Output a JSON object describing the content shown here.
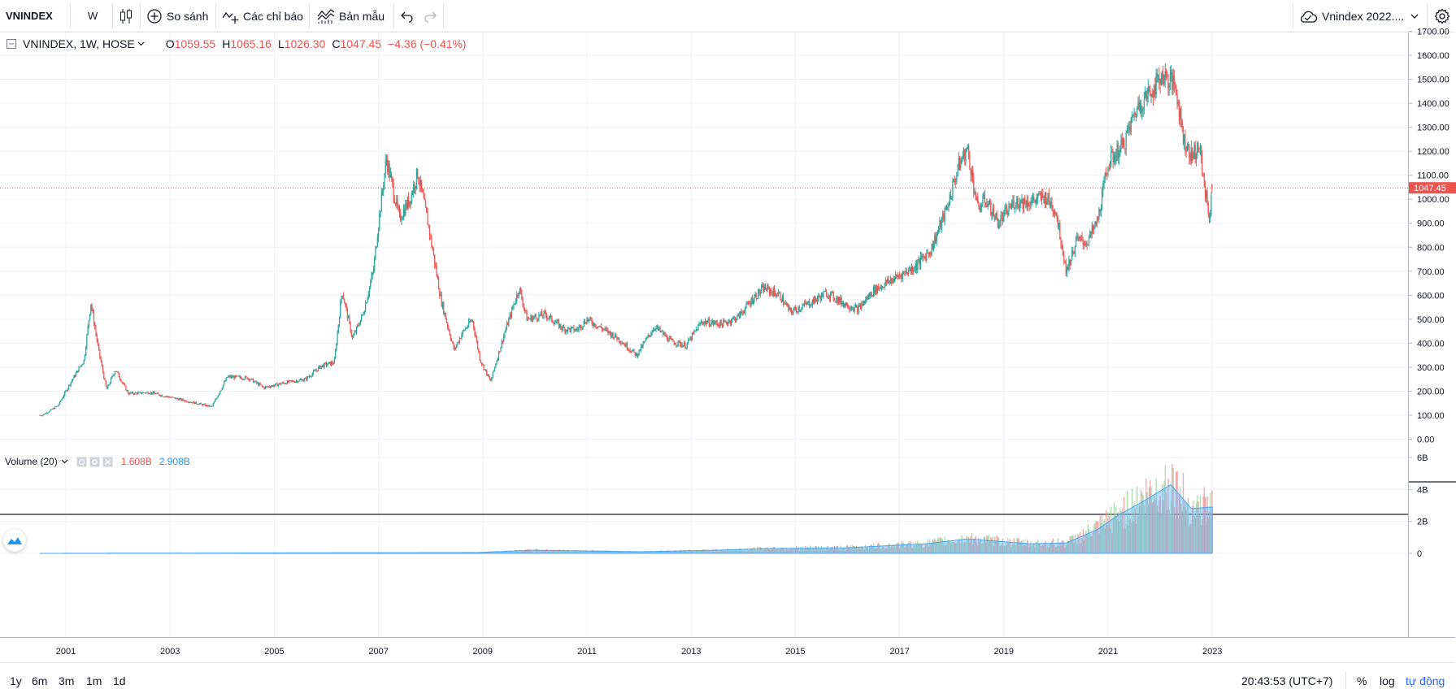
{
  "toolbar": {
    "symbol": "VNINDEX",
    "interval": "W",
    "compare_label": "So sánh",
    "indicators_label": "Các chỉ báo",
    "templates_label": "Bản mẫu",
    "layout_name": "Vnindex 2022...."
  },
  "legend": {
    "title": "VNINDEX, 1W, HOSE",
    "o_label": "O",
    "o_value": "1059.55",
    "h_label": "H",
    "h_value": "1065.16",
    "l_label": "L",
    "l_value": "1026.30",
    "c_label": "C",
    "c_value": "1047.45",
    "change": "−4.36 (−0.41%)"
  },
  "volume_legend": {
    "title": "Volume (20)",
    "value1": "1.608B",
    "value2": "2.908B"
  },
  "price_axis": {
    "labels": [
      "1700.00",
      "1600.00",
      "1500.00",
      "1400.00",
      "1300.00",
      "1200.00",
      "1100.00",
      "1000.00",
      "900.00",
      "800.00",
      "700.00",
      "600.00",
      "500.00",
      "400.00",
      "300.00",
      "200.00",
      "100.00",
      "0.00"
    ],
    "current_price_label": "1047.45"
  },
  "volume_axis": {
    "labels": [
      "6B",
      "4B",
      "2B",
      "0"
    ]
  },
  "time_axis": {
    "labels": [
      "2001",
      "2003",
      "2005",
      "2007",
      "2009",
      "2011",
      "2013",
      "2015",
      "2017",
      "2019",
      "2021",
      "2023"
    ]
  },
  "bottom_bar": {
    "ranges": [
      "1y",
      "6m",
      "3m",
      "1m",
      "1d"
    ],
    "clock": "20:43:53 (UTC+7)",
    "percent_label": "%",
    "log_label": "log",
    "auto_label": "tự động"
  },
  "colors": {
    "up": "#26a69a",
    "down": "#ef5350",
    "volume_ma": "#2196f3",
    "grid": "#f0f3fa",
    "accent": "#2962ff"
  },
  "chart_data": {
    "type": "candlestick",
    "series_name": "VNINDEX",
    "ylim": [
      0,
      1700
    ],
    "x_range": [
      2000.5,
      2023.0
    ],
    "anchors": [
      [
        2000.55,
        100
      ],
      [
        2000.85,
        140
      ],
      [
        2001.1,
        240
      ],
      [
        2001.35,
        330
      ],
      [
        2001.48,
        570
      ],
      [
        2001.62,
        380
      ],
      [
        2001.78,
        205
      ],
      [
        2001.95,
        290
      ],
      [
        2002.2,
        190
      ],
      [
        2002.6,
        195
      ],
      [
        2003.0,
        175
      ],
      [
        2003.5,
        150
      ],
      [
        2003.8,
        135
      ],
      [
        2004.1,
        260
      ],
      [
        2004.5,
        255
      ],
      [
        2004.8,
        215
      ],
      [
        2005.2,
        235
      ],
      [
        2005.6,
        250
      ],
      [
        2005.9,
        305
      ],
      [
        2006.15,
        320
      ],
      [
        2006.3,
        620
      ],
      [
        2006.5,
        420
      ],
      [
        2006.7,
        520
      ],
      [
        2006.9,
        700
      ],
      [
        2007.0,
        900
      ],
      [
        2007.15,
        1170
      ],
      [
        2007.4,
        920
      ],
      [
        2007.6,
        1000
      ],
      [
        2007.75,
        1110
      ],
      [
        2007.95,
        900
      ],
      [
        2008.2,
        580
      ],
      [
        2008.45,
        370
      ],
      [
        2008.6,
        440
      ],
      [
        2008.8,
        500
      ],
      [
        2008.95,
        330
      ],
      [
        2009.15,
        240
      ],
      [
        2009.4,
        430
      ],
      [
        2009.7,
        630
      ],
      [
        2009.85,
        500
      ],
      [
        2010.2,
        520
      ],
      [
        2010.55,
        460
      ],
      [
        2010.8,
        455
      ],
      [
        2011.0,
        500
      ],
      [
        2011.3,
        460
      ],
      [
        2011.6,
        420
      ],
      [
        2011.95,
        350
      ],
      [
        2012.3,
        470
      ],
      [
        2012.6,
        410
      ],
      [
        2012.9,
        390
      ],
      [
        2013.2,
        490
      ],
      [
        2013.6,
        480
      ],
      [
        2013.9,
        510
      ],
      [
        2014.2,
        590
      ],
      [
        2014.4,
        630
      ],
      [
        2014.7,
        600
      ],
      [
        2014.9,
        530
      ],
      [
        2015.3,
        570
      ],
      [
        2015.6,
        610
      ],
      [
        2015.9,
        570
      ],
      [
        2016.2,
        540
      ],
      [
        2016.5,
        620
      ],
      [
        2016.9,
        670
      ],
      [
        2017.3,
        720
      ],
      [
        2017.6,
        790
      ],
      [
        2017.9,
        960
      ],
      [
        2018.15,
        1150
      ],
      [
        2018.3,
        1210
      ],
      [
        2018.5,
        960
      ],
      [
        2018.65,
        1000
      ],
      [
        2018.9,
        900
      ],
      [
        2019.2,
        990
      ],
      [
        2019.5,
        990
      ],
      [
        2019.8,
        1010
      ],
      [
        2020.0,
        950
      ],
      [
        2020.2,
        700
      ],
      [
        2020.4,
        830
      ],
      [
        2020.6,
        820
      ],
      [
        2020.8,
        910
      ],
      [
        2021.0,
        1150
      ],
      [
        2021.3,
        1230
      ],
      [
        2021.55,
        1380
      ],
      [
        2021.85,
        1460
      ],
      [
        2022.05,
        1520
      ],
      [
        2022.3,
        1470
      ],
      [
        2022.45,
        1250
      ],
      [
        2022.6,
        1180
      ],
      [
        2022.75,
        1220
      ],
      [
        2022.85,
        1050
      ],
      [
        2022.95,
        920
      ],
      [
        2023.0,
        1047
      ]
    ],
    "volume_profile": [
      [
        2000.5,
        0.0
      ],
      [
        2008.9,
        0.05
      ],
      [
        2009.6,
        0.15
      ],
      [
        2010.0,
        0.2
      ],
      [
        2012.0,
        0.1
      ],
      [
        2013.5,
        0.2
      ],
      [
        2014.5,
        0.3
      ],
      [
        2016.0,
        0.35
      ],
      [
        2017.5,
        0.6
      ],
      [
        2018.3,
        0.9
      ],
      [
        2019.5,
        0.6
      ],
      [
        2020.2,
        0.65
      ],
      [
        2020.8,
        1.5
      ],
      [
        2021.2,
        2.4
      ],
      [
        2021.7,
        3.3
      ],
      [
        2022.2,
        4.3
      ],
      [
        2022.6,
        2.8
      ],
      [
        2023.0,
        2.9
      ]
    ],
    "volume_ylim": [
      0,
      6
    ],
    "last_candle": {
      "open": 1059.55,
      "high": 1065.16,
      "low": 1026.3,
      "close": 1047.45
    },
    "grid": true,
    "scale": "linear"
  }
}
